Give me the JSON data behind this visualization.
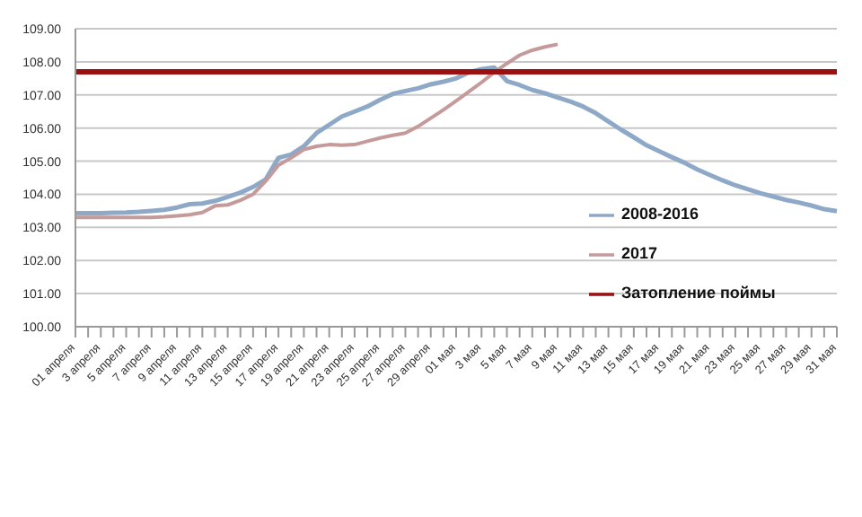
{
  "chart_data": {
    "type": "line",
    "categories": [
      "01 апреля",
      null,
      "3 апреля",
      null,
      "5 апреля",
      null,
      "7 апреля",
      null,
      "9 апреля",
      null,
      "11 апреля",
      null,
      "13 апреля",
      null,
      "15 апреля",
      null,
      "17 апреля",
      null,
      "19 апреля",
      null,
      "21 апреля",
      null,
      "23 апреля",
      null,
      "25 апреля",
      null,
      "27 апреля",
      null,
      "29 апреля",
      null,
      "01 мая",
      null,
      "3 мая",
      null,
      "5 мая",
      null,
      "7 мая",
      null,
      "9 мая",
      null,
      "11 мая",
      null,
      "13 мая",
      null,
      "15 мая",
      null,
      "17 мая",
      null,
      "19 мая",
      null,
      "21 мая",
      null,
      "23 мая",
      null,
      "25 мая",
      null,
      "27 мая",
      null,
      "29 мая",
      null,
      "31 мая"
    ],
    "series": [
      {
        "name": "2008-2016",
        "color": "#8ea9c8",
        "values": [
          103.43,
          103.43,
          103.43,
          103.44,
          103.45,
          103.47,
          103.5,
          103.53,
          103.6,
          103.7,
          103.72,
          103.8,
          103.92,
          104.05,
          104.22,
          104.45,
          105.1,
          105.2,
          105.45,
          105.85,
          106.1,
          106.35,
          106.5,
          106.65,
          106.85,
          107.03,
          107.12,
          107.2,
          107.32,
          107.4,
          107.5,
          107.68,
          107.78,
          107.83,
          107.42,
          107.3,
          107.15,
          107.05,
          106.92,
          106.8,
          106.65,
          106.45,
          106.2,
          105.95,
          105.72,
          105.48,
          105.3,
          105.12,
          104.95,
          104.75,
          104.58,
          104.42,
          104.27,
          104.15,
          104.03,
          103.93,
          103.83,
          103.75,
          103.66,
          103.55,
          103.49
        ]
      },
      {
        "name": "2017",
        "color": "#c49a9a",
        "values": [
          103.3,
          103.3,
          103.3,
          103.3,
          103.3,
          103.3,
          103.3,
          103.32,
          103.35,
          103.38,
          103.45,
          103.65,
          103.68,
          103.82,
          104.0,
          104.4,
          104.88,
          105.1,
          105.35,
          105.45,
          105.5,
          105.48,
          105.5,
          105.6,
          105.7,
          105.78,
          105.85,
          106.05,
          106.3,
          106.55,
          106.82,
          107.1,
          107.38,
          107.68,
          107.95,
          108.2,
          108.35,
          108.45,
          108.53,
          null,
          null,
          null,
          null,
          null,
          null,
          null,
          null,
          null,
          null,
          null,
          null,
          null,
          null,
          null,
          null,
          null,
          null,
          null,
          null,
          null,
          null
        ]
      },
      {
        "name": "Затопление поймы",
        "color": "#9b1010",
        "values": [
          107.7,
          107.7,
          107.7,
          107.7,
          107.7,
          107.7,
          107.7,
          107.7,
          107.7,
          107.7,
          107.7,
          107.7,
          107.7,
          107.7,
          107.7,
          107.7,
          107.7,
          107.7,
          107.7,
          107.7,
          107.7,
          107.7,
          107.7,
          107.7,
          107.7,
          107.7,
          107.7,
          107.7,
          107.7,
          107.7,
          107.7,
          107.7,
          107.7,
          107.7,
          107.7,
          107.7,
          107.7,
          107.7,
          107.7,
          107.7,
          107.7,
          107.7,
          107.7,
          107.7,
          107.7,
          107.7,
          107.7,
          107.7,
          107.7,
          107.7,
          107.7,
          107.7,
          107.7,
          107.7,
          107.7,
          107.7,
          107.7,
          107.7,
          107.7,
          107.7,
          107.7
        ]
      }
    ],
    "ylim": [
      100,
      109
    ],
    "yticks": [
      {
        "value": 100,
        "label": "100.00"
      },
      {
        "value": 101,
        "label": "101.00"
      },
      {
        "value": 102,
        "label": "102.00"
      },
      {
        "value": 103,
        "label": "103.00"
      },
      {
        "value": 104,
        "label": "104.00"
      },
      {
        "value": 105,
        "label": "105.00"
      },
      {
        "value": 106,
        "label": "106.00"
      },
      {
        "value": 107,
        "label": "107.00"
      },
      {
        "value": 108,
        "label": "108.00"
      },
      {
        "value": 109,
        "label": "109.00"
      }
    ],
    "grid": "y",
    "legend": "right",
    "marker": "none",
    "line_style": "solid"
  }
}
